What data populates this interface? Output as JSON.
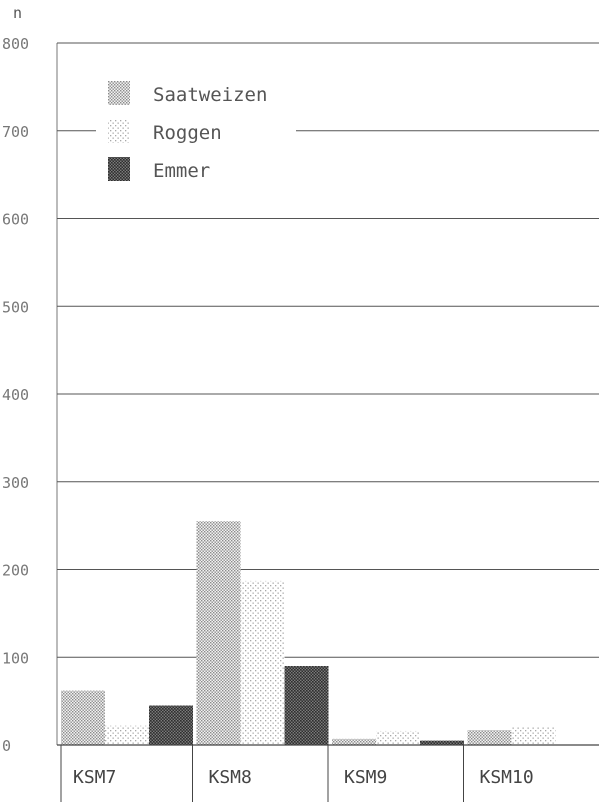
{
  "chart_data": {
    "type": "bar",
    "title": "",
    "xlabel": "",
    "ylabel": "n",
    "ylim": [
      0,
      800
    ],
    "yticks": [
      0,
      100,
      200,
      300,
      400,
      500,
      600,
      700,
      800
    ],
    "grid": true,
    "legend_position": "top-left",
    "categories": [
      "KSM7",
      "KSM8",
      "KSM9",
      "KSM10"
    ],
    "series": [
      {
        "name": "Saatweizen",
        "values": [
          62,
          255,
          7,
          17
        ],
        "pattern": "dense-dots",
        "color": "#9a9a9a"
      },
      {
        "name": "Roggen",
        "values": [
          22,
          187,
          16,
          20
        ],
        "pattern": "sparse-dots",
        "color": "#c8c8c8"
      },
      {
        "name": "Emmer",
        "values": [
          45,
          90,
          5,
          0
        ],
        "pattern": "dark-dense",
        "color": "#4a4a4a"
      }
    ]
  }
}
